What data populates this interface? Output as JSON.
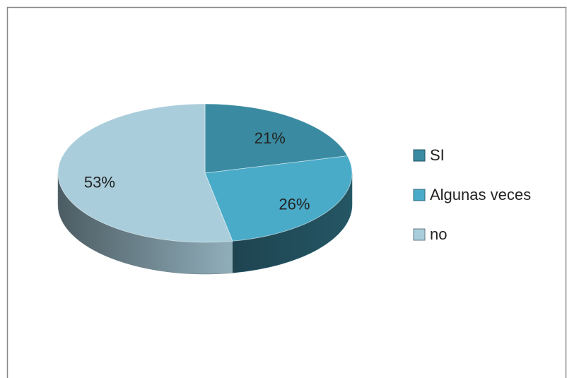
{
  "chart_data": {
    "type": "pie",
    "categories": [
      "SI",
      "Algunas veces",
      "no"
    ],
    "values": [
      21,
      26,
      53
    ],
    "value_labels": [
      "21%",
      "26%",
      "53%"
    ],
    "colors": [
      "#3a8ba1",
      "#4aabc8",
      "#a9cddb"
    ],
    "legend": "right"
  }
}
